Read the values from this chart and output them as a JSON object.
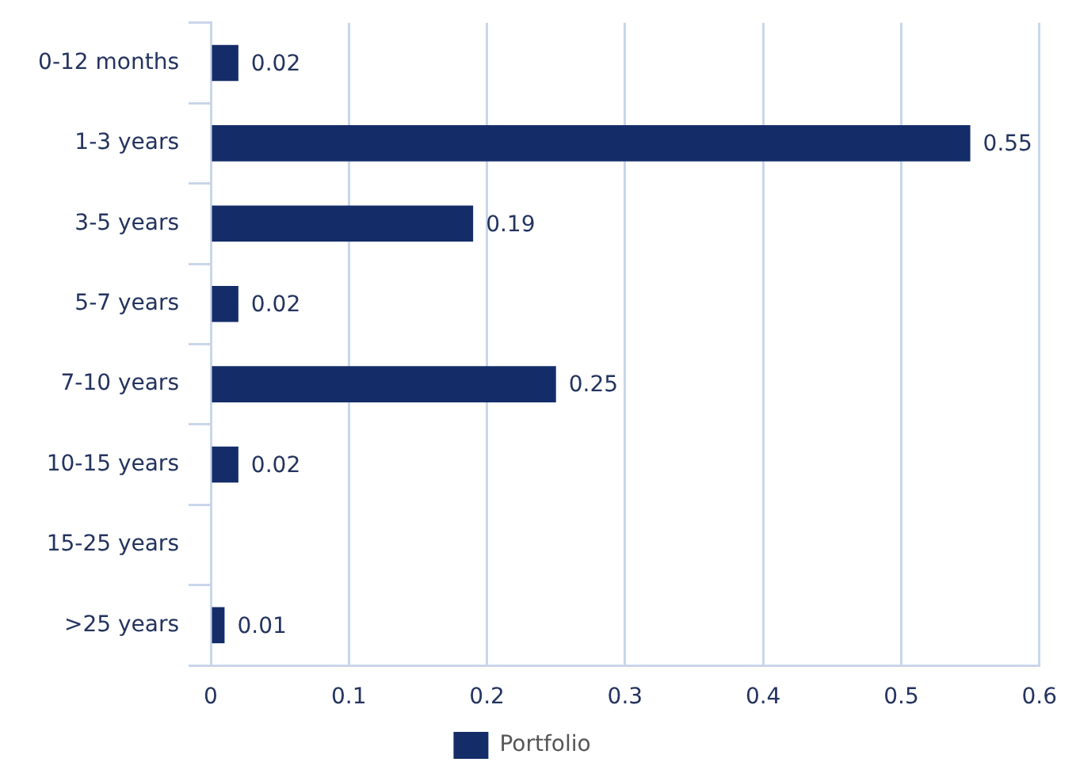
{
  "chart_data": {
    "type": "bar",
    "orientation": "horizontal",
    "categories": [
      "0-12 months",
      "1-3 years",
      "3-5 years",
      "5-7 years",
      "7-10 years",
      "10-15 years",
      "15-25 years",
      ">25 years"
    ],
    "series": [
      {
        "name": "Portfolio",
        "color": "#142d69",
        "values": [
          0.02,
          0.55,
          0.19,
          0.02,
          0.25,
          0.02,
          null,
          0.01
        ]
      }
    ],
    "xlim": [
      0,
      0.6
    ],
    "xticks": [
      0,
      0.1,
      0.2,
      0.3,
      0.4,
      0.5,
      0.6
    ],
    "grid": "x",
    "legend": "bottom",
    "data_labels": true
  }
}
